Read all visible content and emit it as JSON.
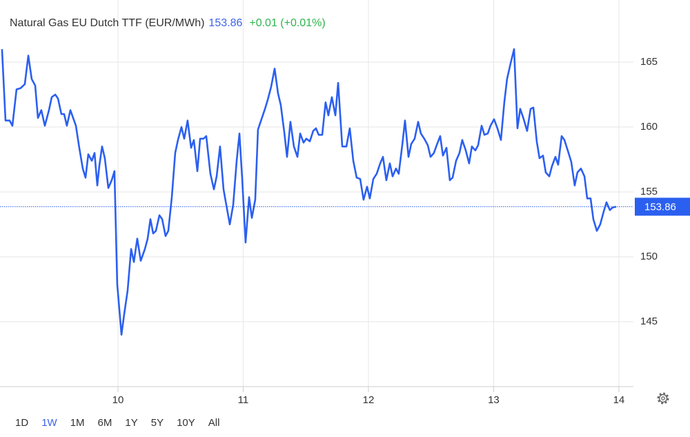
{
  "chart_data": {
    "type": "line",
    "title": "Natural Gas EU Dutch TTF (EUR/MWh)",
    "last_price": 153.86,
    "change": "+0.01 (+0.01%)",
    "color": "#2b5ff0",
    "price_color": "#3d63e6",
    "change_color": "#2fb44e",
    "grid": true,
    "x": [
      9.074,
      9.102,
      9.135,
      9.157,
      9.19,
      9.223,
      9.256,
      9.284,
      9.311,
      9.339,
      9.361,
      9.388,
      9.416,
      9.449,
      9.471,
      9.499,
      9.521,
      9.548,
      9.57,
      9.592,
      9.62,
      9.642,
      9.664,
      9.691,
      9.719,
      9.741,
      9.763,
      9.791,
      9.813,
      9.835,
      9.851,
      9.873,
      9.895,
      9.923,
      9.95,
      9.972,
      9.994,
      10.028,
      10.05,
      10.077,
      10.105,
      10.127,
      10.154,
      10.182,
      10.215,
      10.237,
      10.259,
      10.281,
      10.303,
      10.331,
      10.353,
      10.38,
      10.402,
      10.43,
      10.457,
      10.479,
      10.507,
      10.529,
      10.556,
      10.584,
      10.606,
      10.634,
      10.656,
      10.683,
      10.705,
      10.738,
      10.766,
      10.788,
      10.815,
      10.843,
      10.865,
      10.893,
      10.92,
      10.948,
      10.97,
      10.992,
      11.019,
      11.047,
      11.069,
      11.096,
      11.118,
      11.146,
      11.174,
      11.196,
      11.223,
      11.251,
      11.278,
      11.3,
      11.328,
      11.35,
      11.377,
      11.405,
      11.433,
      11.455,
      11.482,
      11.504,
      11.532,
      11.559,
      11.581,
      11.603,
      11.631,
      11.658,
      11.68,
      11.708,
      11.736,
      11.758,
      11.791,
      11.824,
      11.851,
      11.879,
      11.906,
      11.934,
      11.961,
      11.989,
      12.011,
      12.039,
      12.066,
      12.094,
      12.116,
      12.143,
      12.171,
      12.193,
      12.22,
      12.242,
      12.27,
      12.292,
      12.32,
      12.342,
      12.369,
      12.397,
      12.419,
      12.446,
      12.474,
      12.496,
      12.523,
      12.545,
      12.573,
      12.595,
      12.623,
      12.65,
      12.672,
      12.7,
      12.727,
      12.749,
      12.777,
      12.804,
      12.826,
      12.854,
      12.876,
      12.904,
      12.926,
      12.953,
      12.975,
      13.003,
      13.03,
      13.058,
      13.085,
      13.107,
      13.135,
      13.163,
      13.19,
      13.212,
      13.24,
      13.267,
      13.295,
      13.317,
      13.344,
      13.366,
      13.394,
      13.416,
      13.444,
      13.466,
      13.493,
      13.515,
      13.543,
      13.565,
      13.598,
      13.62,
      13.647,
      13.669,
      13.697,
      13.725,
      13.747,
      13.774,
      13.796,
      13.824,
      13.851,
      13.879,
      13.901,
      13.928,
      13.95,
      13.978
    ],
    "values": [
      166.0,
      160.5,
      160.5,
      160.1,
      162.9,
      163.0,
      163.3,
      165.5,
      163.7,
      163.2,
      160.7,
      161.3,
      160.1,
      161.3,
      162.3,
      162.5,
      162.2,
      161.0,
      161.0,
      160.1,
      161.3,
      160.7,
      160.1,
      158.4,
      156.8,
      156.1,
      157.9,
      157.4,
      158.0,
      155.5,
      157.0,
      158.5,
      157.6,
      155.3,
      155.9,
      156.6,
      147.9,
      144.0,
      145.6,
      147.4,
      150.6,
      149.6,
      151.4,
      149.7,
      150.6,
      151.4,
      152.9,
      151.8,
      152.0,
      153.2,
      152.9,
      151.6,
      152.0,
      154.6,
      158.0,
      159.0,
      160.0,
      159.1,
      160.5,
      158.4,
      159.0,
      156.6,
      159.1,
      159.1,
      159.3,
      156.4,
      155.2,
      156.2,
      158.5,
      155.2,
      154.0,
      152.5,
      154.0,
      157.4,
      159.5,
      156.0,
      151.1,
      154.6,
      153.0,
      154.4,
      159.8,
      160.6,
      161.4,
      162.1,
      163.1,
      164.5,
      162.6,
      161.7,
      159.6,
      157.7,
      160.4,
      158.5,
      157.7,
      159.5,
      158.8,
      159.1,
      158.9,
      159.7,
      159.9,
      159.4,
      159.4,
      161.9,
      160.9,
      162.3,
      160.9,
      163.4,
      158.5,
      158.5,
      159.9,
      157.4,
      156.1,
      156.0,
      154.4,
      155.4,
      154.5,
      156.0,
      156.4,
      157.2,
      157.7,
      155.9,
      157.2,
      156.2,
      156.8,
      156.4,
      158.6,
      160.5,
      157.7,
      158.7,
      159.1,
      160.4,
      159.5,
      159.1,
      158.6,
      157.7,
      158.0,
      158.6,
      159.3,
      157.8,
      158.4,
      155.9,
      156.1,
      157.4,
      158.0,
      159.0,
      158.2,
      157.2,
      158.5,
      158.2,
      158.6,
      160.1,
      159.4,
      159.5,
      160.1,
      160.6,
      159.9,
      159.0,
      161.9,
      163.7,
      164.9,
      166.0,
      159.9,
      161.4,
      160.6,
      159.7,
      161.4,
      161.5,
      158.9,
      157.6,
      157.8,
      156.5,
      156.2,
      157.0,
      157.7,
      157.1,
      159.3,
      159.0,
      158.0,
      157.3,
      155.5,
      156.5,
      156.8,
      156.2,
      154.5,
      154.5,
      152.9,
      152.0,
      152.5,
      153.5,
      154.2,
      153.6,
      153.8,
      153.86
    ],
    "xlim": [
      9.058,
      14.116
    ],
    "xticks": [
      10,
      11,
      12,
      13,
      14
    ],
    "ylim": [
      140,
      167.5
    ],
    "yticks": [
      145,
      150,
      155,
      160,
      165
    ],
    "range_buttons": [
      "1D",
      "1W",
      "1M",
      "6M",
      "1Y",
      "5Y",
      "10Y",
      "All"
    ],
    "selected_range": "1W"
  }
}
